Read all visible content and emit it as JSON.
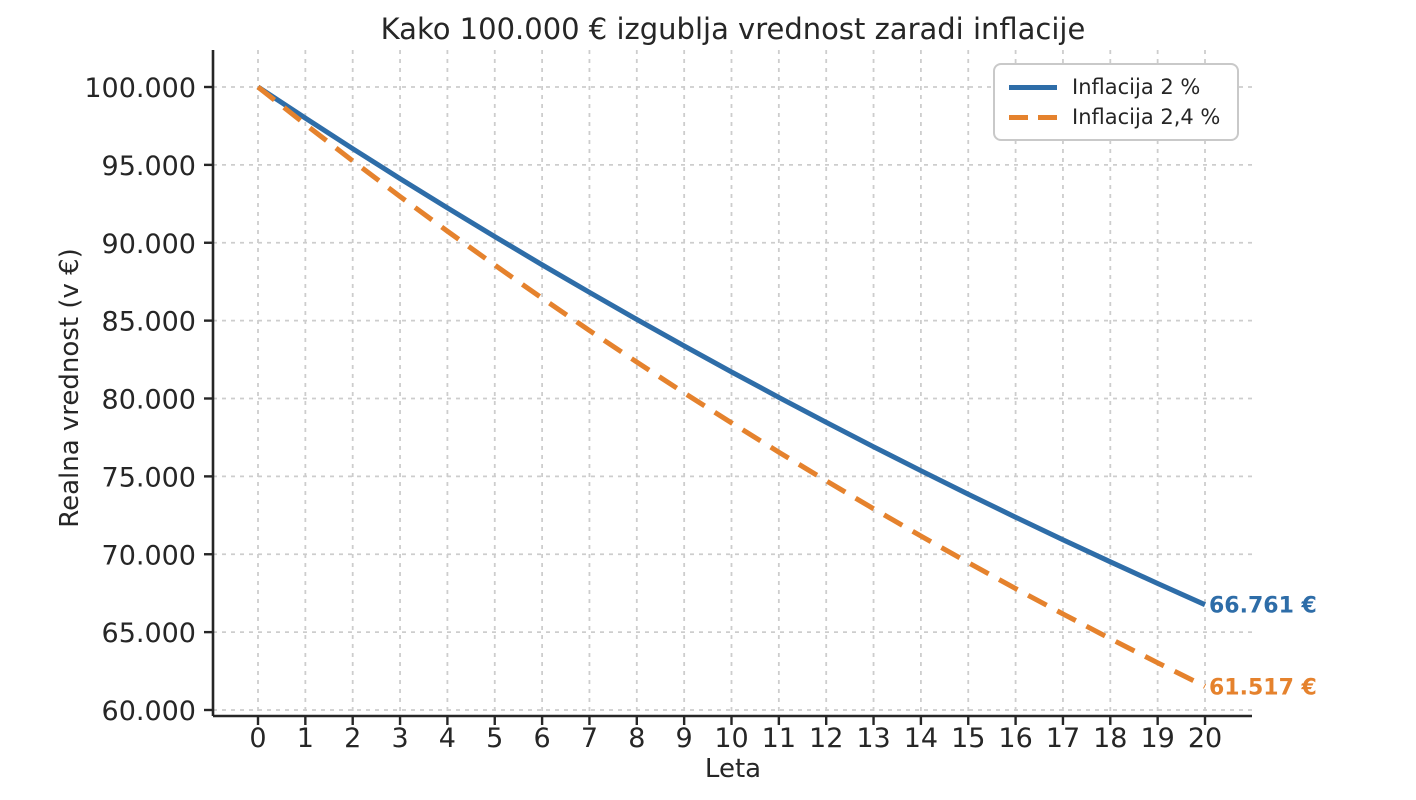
{
  "chart_data": {
    "type": "line",
    "title": "Kako 100.000 € izgublja vrednost zaradi inflacije",
    "xlabel": "Leta",
    "ylabel": "Realna vrednost (v €)",
    "x": [
      0,
      1,
      2,
      3,
      4,
      5,
      6,
      7,
      8,
      9,
      10,
      11,
      12,
      13,
      14,
      15,
      16,
      17,
      18,
      19,
      20
    ],
    "x_tick_labels": [
      "0",
      "1",
      "2",
      "3",
      "4",
      "5",
      "6",
      "7",
      "8",
      "9",
      "10",
      "11",
      "12",
      "13",
      "14",
      "15",
      "16",
      "17",
      "18",
      "19",
      "20"
    ],
    "y_tick_values": [
      60000,
      65000,
      70000,
      75000,
      80000,
      85000,
      90000,
      95000,
      100000
    ],
    "y_tick_labels": [
      "60.000",
      "65.000",
      "70.000",
      "75.000",
      "80.000",
      "85.000",
      "90.000",
      "95.000",
      "100.000"
    ],
    "xlim": [
      -0.95,
      21
    ],
    "ylim": [
      59600,
      102380
    ],
    "grid": true,
    "grid_style": "dashed",
    "legend_position": "top-right",
    "series": [
      {
        "name": "Inflacija 2 %",
        "color": "#2e6da8",
        "line_style": "solid",
        "values": [
          100000,
          98000,
          96040,
          94119,
          92237,
          90392,
          88584,
          86813,
          85076,
          83375,
          81707,
          80073,
          78472,
          76902,
          75364,
          73857,
          72380,
          70932,
          69514,
          68123,
          66761
        ],
        "end_label": "66.761 €"
      },
      {
        "name": "Inflacija 2,4 %",
        "color": "#e5822d",
        "line_style": "dashed",
        "values": [
          100000,
          97600,
          95258,
          92971,
          90740,
          88562,
          86437,
          84362,
          82338,
          80362,
          78433,
          76550,
          74713,
          72920,
          71170,
          69462,
          67795,
          66168,
          64580,
          63030,
          61517
        ],
        "end_label": "61.517 €"
      }
    ],
    "colors": {
      "grid": "#cdcdcd",
      "axis": "#262626",
      "text": "#262626",
      "background": "#ffffff"
    }
  }
}
